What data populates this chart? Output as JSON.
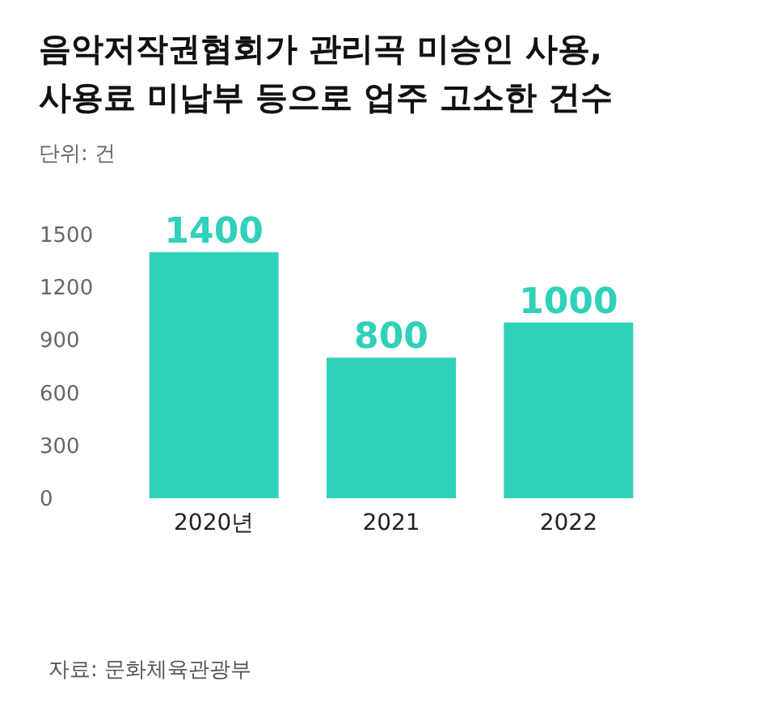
{
  "chart_data": {
    "type": "bar",
    "title": "음악저작권협회가 관리곡 미승인 사용,\n사용료 미납부 등으로 업주 고소한 건수",
    "subtitle": "단위: 건",
    "categories": [
      "2020년",
      "2021",
      "2022"
    ],
    "values": [
      1400,
      800,
      1000
    ],
    "color": "#2fd1b9",
    "ylim": [
      0,
      1500
    ],
    "yticks": [
      0,
      300,
      600,
      900,
      1200,
      1500
    ],
    "data_labels": true,
    "annotations": [
      "자료: 문화체육관광부"
    ]
  }
}
